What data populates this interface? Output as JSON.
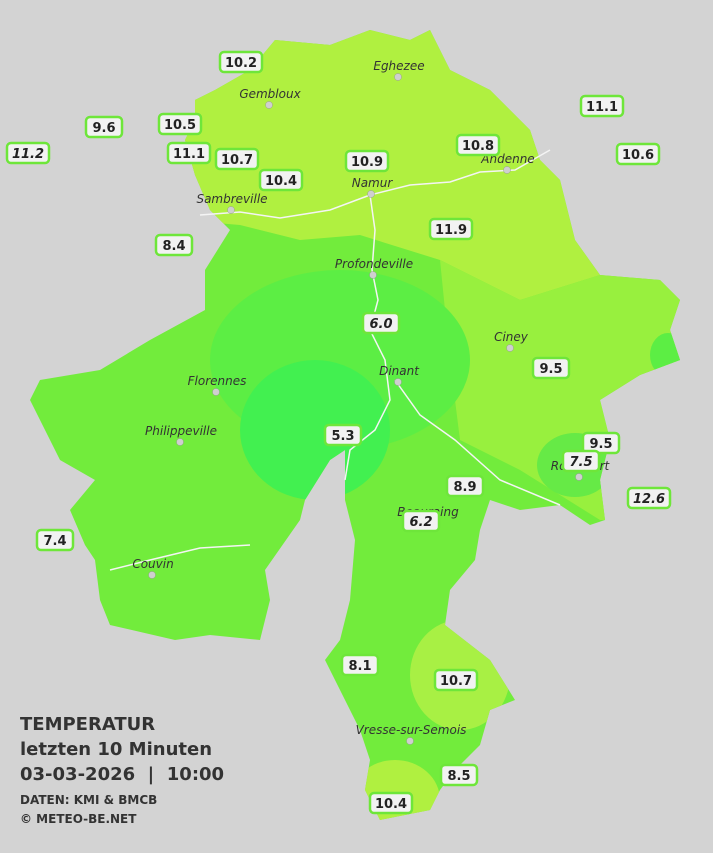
{
  "title": {
    "heading": "TEMPERATUR",
    "period": "letzten 10 Minuten",
    "datetime": "03-03-2026  |  10:00",
    "source": "DATEN: KMI & BMCB",
    "copyright": "© METEO-BE.NET"
  },
  "cities": [
    "Eghezee",
    "Gembloux",
    "Andenne",
    "Namur",
    "Sambreville",
    "Profondeville",
    "Ciney",
    "Dinant",
    "Florennes",
    "Philippeville",
    "Rochefort",
    "Beauraing",
    "Couvin",
    "Vresse-sur-Semois"
  ],
  "stations": [
    {
      "label": "10.2",
      "italic": false
    },
    {
      "label": "9.6",
      "italic": false
    },
    {
      "label": "10.5",
      "italic": false
    },
    {
      "label": "11.2",
      "italic": true
    },
    {
      "label": "11.1",
      "italic": false
    },
    {
      "label": "10.7",
      "italic": false
    },
    {
      "label": "10.4",
      "italic": false
    },
    {
      "label": "10.9",
      "italic": false
    },
    {
      "label": "10.8",
      "italic": false
    },
    {
      "label": "11.1",
      "italic": false
    },
    {
      "label": "10.6",
      "italic": false
    },
    {
      "label": "8.4",
      "italic": false
    },
    {
      "label": "11.9",
      "italic": false
    },
    {
      "label": "6.0",
      "italic": true
    },
    {
      "label": "9.5",
      "italic": false
    },
    {
      "label": "5.3",
      "italic": false
    },
    {
      "label": "9.5",
      "italic": false
    },
    {
      "label": "7.5",
      "italic": true
    },
    {
      "label": "8.9",
      "italic": false
    },
    {
      "label": "12.6",
      "italic": true
    },
    {
      "label": "6.2",
      "italic": true
    },
    {
      "label": "7.4",
      "italic": false
    },
    {
      "label": "8.1",
      "italic": false
    },
    {
      "label": "10.7",
      "italic": false
    },
    {
      "label": "8.5",
      "italic": false
    },
    {
      "label": "10.4",
      "italic": false
    }
  ]
}
